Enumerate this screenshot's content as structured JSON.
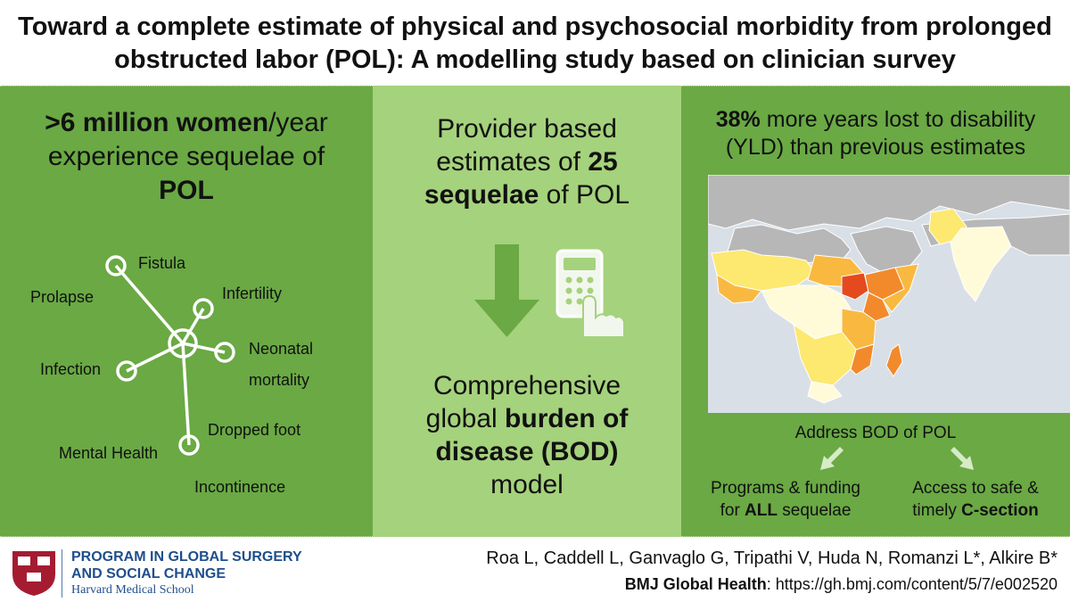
{
  "title": {
    "line1": "Toward a complete estimate of physical and psychosocial morbidity from prolonged",
    "line2": "obstructed labor (POL): A modelling study based on clinician survey"
  },
  "left": {
    "head_bold1": ">6 million women",
    "head_rest1": "/year",
    "head_line2": "experience sequelae of",
    "head_bold3": "POL",
    "sequelae": [
      "Fistula",
      "Prolapse",
      "Infertility",
      "Neonatal",
      "mortality",
      "Infection",
      "Dropped foot",
      "Mental Health",
      "Incontinence"
    ]
  },
  "middle": {
    "top_line1": "Provider based",
    "top_line2_a": "estimates of ",
    "top_line2_b": "25",
    "top_line3_a": "sequelae",
    "top_line3_b": " of POL",
    "bottom_line1": "Comprehensive",
    "bottom_line2_a": "global ",
    "bottom_line2_b": "burden of",
    "bottom_line3": "disease (BOD)",
    "bottom_line4": "model",
    "icons": [
      "down-arrow-icon",
      "calculator-icon",
      "pointing-hand-icon"
    ]
  },
  "right": {
    "head_bold": "38%",
    "head_rest1": " more years lost to disability",
    "head_line2": "(YLD) than previous estimates",
    "address": "Address BOD of POL",
    "left_line1": "Programs & funding",
    "left_line2_a": "for ",
    "left_line2_b": "ALL",
    "left_line2_c": " sequelae",
    "right_line1": "Access to safe &",
    "right_line2_a": "timely ",
    "right_line2_b": "C-section",
    "map_colors": [
      "#fffbd9",
      "#fde870",
      "#f9b940",
      "#f28a2c",
      "#e54a1f"
    ]
  },
  "footer": {
    "program_line1": "PROGRAM IN GLOBAL SURGERY",
    "program_line2": "AND SOCIAL CHANGE",
    "school": "Harvard Medical School",
    "authors": "Roa L, Caddell L, Ganvaglo G, Tripathi V, Huda N, Romanzi L*, Alkire B*",
    "journal_label": "BMJ Global Health",
    "journal_url": ": https://gh.bmj.com/content/5/7/e002520"
  }
}
